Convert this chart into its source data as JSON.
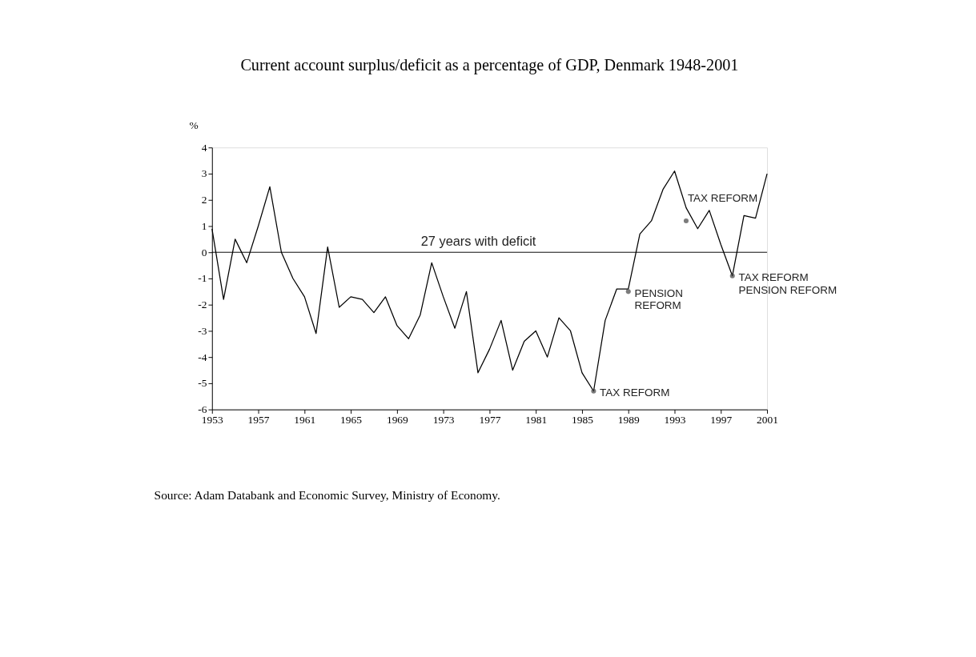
{
  "chart_data": {
    "type": "line",
    "title": "Current account surplus/deficit as a percentage of GDP, Denmark 1948-2001",
    "ylabel": "%",
    "x": [
      1953,
      1954,
      1955,
      1956,
      1957,
      1958,
      1959,
      1960,
      1961,
      1962,
      1963,
      1964,
      1965,
      1966,
      1967,
      1968,
      1969,
      1970,
      1971,
      1972,
      1973,
      1974,
      1975,
      1976,
      1977,
      1978,
      1979,
      1980,
      1981,
      1982,
      1983,
      1984,
      1985,
      1986,
      1987,
      1988,
      1989,
      1990,
      1991,
      1992,
      1993,
      1994,
      1995,
      1996,
      1997,
      1998,
      1999,
      2000,
      2001
    ],
    "series": [
      {
        "color": "#000000",
        "values": [
          0.9,
          -1.8,
          0.5,
          -0.4,
          1.0,
          2.5,
          0.0,
          -1.0,
          -1.7,
          -3.1,
          0.2,
          -2.1,
          -1.7,
          -1.8,
          -2.3,
          -1.7,
          -2.8,
          -3.3,
          -2.4,
          -0.4,
          -1.7,
          -2.9,
          -1.5,
          -4.6,
          -3.7,
          -2.6,
          -4.5,
          -3.4,
          -3.0,
          -4.0,
          -2.5,
          -3.0,
          -4.6,
          -5.3,
          -2.6,
          -1.4,
          -1.4,
          0.7,
          1.2,
          2.4,
          3.1,
          1.7,
          0.9,
          1.6,
          0.3,
          -0.9,
          1.4,
          1.3,
          3.0
        ]
      }
    ],
    "xlim": [
      1953,
      2001
    ],
    "xticks": [
      1953,
      1957,
      1961,
      1965,
      1969,
      1973,
      1977,
      1981,
      1985,
      1989,
      1993,
      1997,
      2001
    ],
    "ylim": [
      -6,
      4
    ],
    "yticks": [
      -6,
      -5,
      -4,
      -3,
      -2,
      -1,
      0,
      1,
      2,
      3,
      4
    ],
    "grid": false,
    "marker": "none",
    "line_style": "solid",
    "ref_lines": [
      {
        "axis": "y",
        "value": 0
      }
    ],
    "annotations": [
      "27 years with deficit",
      {
        "text": "TAX REFORM",
        "x": 1986,
        "y": -5.3
      },
      {
        "text": "PENSION\nREFORM",
        "x": 1989,
        "y": -1.5
      },
      {
        "text": "TAX REFORM",
        "x": 1994,
        "y": 1.2
      },
      {
        "text": "TAX REFORM\nPENSION REFORM",
        "x": 1998,
        "y": -0.9
      },
      "Source: Adam Databank and Economic Survey, Ministry of Economy."
    ]
  }
}
